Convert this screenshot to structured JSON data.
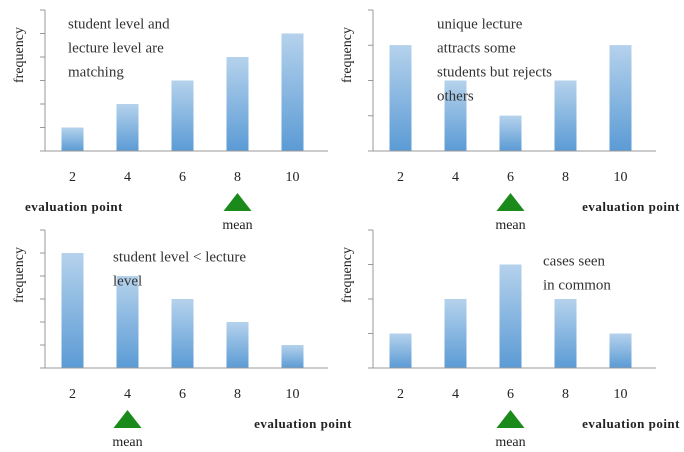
{
  "chart_data": [
    {
      "type": "bar",
      "annotation": [
        "student level and",
        "lecture level are",
        "matching"
      ],
      "ylabel": "frequency",
      "xlabel": "evaluation point",
      "x": [
        2,
        4,
        6,
        8,
        10
      ],
      "values": [
        1,
        2,
        3,
        4,
        5
      ],
      "color": "#5b9bd5",
      "xlim": [
        1,
        11
      ],
      "ylim": [
        0,
        6
      ],
      "yticks": [
        0,
        1,
        2,
        3,
        4,
        5,
        6
      ],
      "mean_x": 8,
      "mean_label": "mean",
      "mean_color": "#1a8a1a",
      "xlabel_side": "left"
    },
    {
      "type": "bar",
      "annotation": [
        "unique lecture",
        "attracts some",
        "students but rejects",
        "others"
      ],
      "ylabel": "frequency",
      "xlabel": "evaluation point",
      "x": [
        2,
        4,
        6,
        8,
        10
      ],
      "values": [
        3,
        2,
        1,
        2,
        3
      ],
      "color": "#5b9bd5",
      "xlim": [
        1,
        11
      ],
      "ylim": [
        0,
        4
      ],
      "yticks": [
        0,
        1,
        2,
        3,
        4
      ],
      "mean_x": 6,
      "mean_label": "mean",
      "mean_color": "#1a8a1a",
      "xlabel_side": "right"
    },
    {
      "type": "bar",
      "annotation": [
        "student level < lecture",
        "level"
      ],
      "ylabel": "frequency",
      "xlabel": "evaluation point",
      "x": [
        2,
        4,
        6,
        8,
        10
      ],
      "values": [
        5,
        4,
        3,
        2,
        1
      ],
      "color": "#5b9bd5",
      "xlim": [
        1,
        11
      ],
      "ylim": [
        0,
        6
      ],
      "yticks": [
        0,
        1,
        2,
        3,
        4,
        5,
        6
      ],
      "mean_x": 4,
      "mean_label": "mean",
      "mean_color": "#1a8a1a",
      "xlabel_side": "right"
    },
    {
      "type": "bar",
      "annotation": [
        "cases seen",
        "in common"
      ],
      "ylabel": "frequency",
      "xlabel": "evaluation point",
      "x": [
        2,
        4,
        6,
        8,
        10
      ],
      "values": [
        1,
        2,
        3,
        2,
        1
      ],
      "color": "#5b9bd5",
      "xlim": [
        1,
        11
      ],
      "ylim": [
        0,
        4
      ],
      "yticks": [
        0,
        1,
        2,
        3,
        4
      ],
      "mean_x": 6,
      "mean_label": "mean",
      "mean_color": "#1a8a1a",
      "xlabel_side": "right"
    }
  ]
}
